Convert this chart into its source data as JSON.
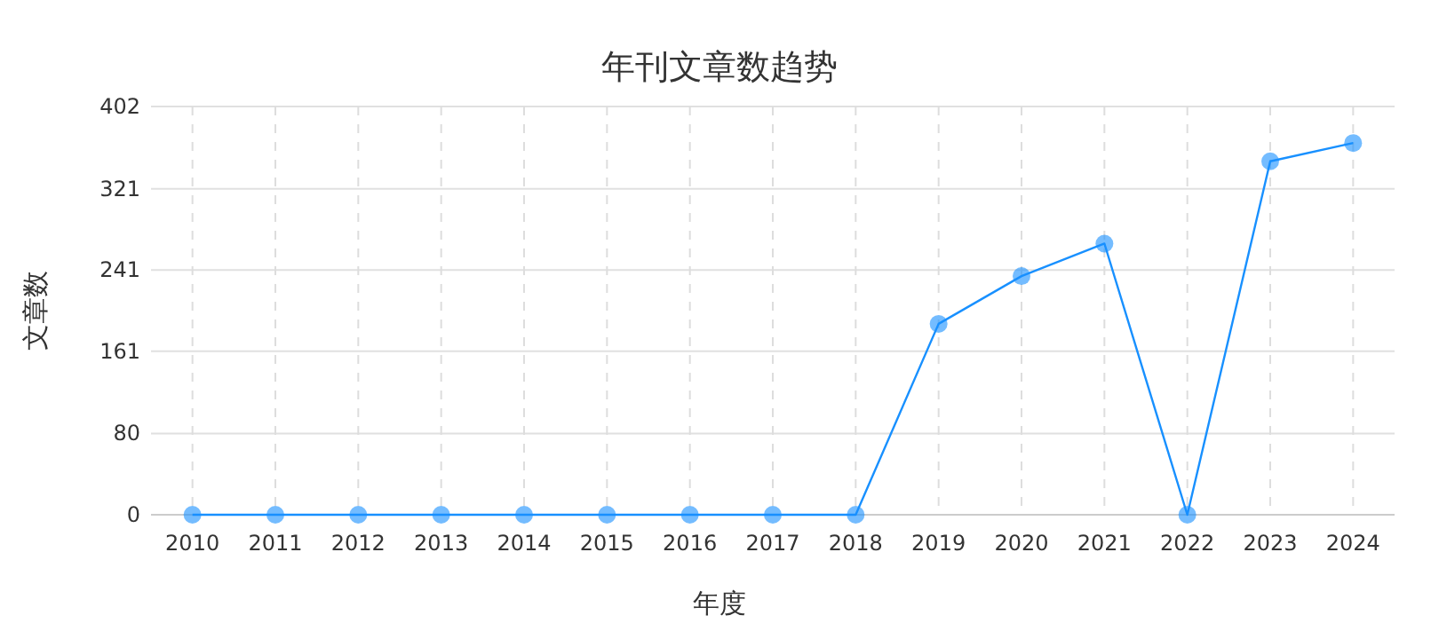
{
  "chart_data": {
    "type": "line",
    "title": "年刊文章数趋势",
    "xlabel": "年度",
    "ylabel": "文章数",
    "categories": [
      "2010",
      "2011",
      "2012",
      "2013",
      "2014",
      "2015",
      "2016",
      "2017",
      "2018",
      "2019",
      "2020",
      "2021",
      "2022",
      "2023",
      "2024"
    ],
    "series": [
      {
        "color": "#1890ff",
        "values": [
          0,
          0,
          0,
          0,
          0,
          0,
          0,
          0,
          0,
          188,
          235,
          267,
          0,
          348,
          366
        ]
      }
    ],
    "ylim": [
      0,
      402
    ],
    "yticks": [
      0,
      80,
      161,
      241,
      321,
      402
    ],
    "grid": true,
    "marker": "circle",
    "line_style": "solid"
  }
}
